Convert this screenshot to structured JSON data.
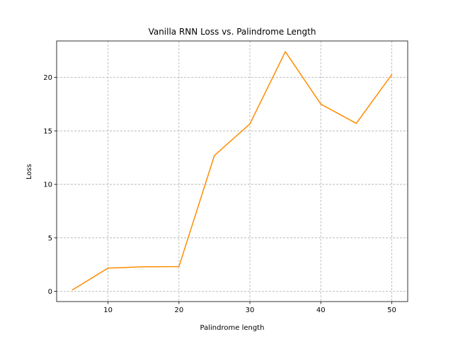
{
  "chart_data": {
    "type": "line",
    "title": "Vanilla RNN Loss vs. Palindrome Length",
    "xlabel": "Palindrome length",
    "ylabel": "Loss",
    "x": [
      5,
      10,
      15,
      20,
      25,
      30,
      35,
      40,
      45,
      50
    ],
    "series": [
      {
        "values": [
          0.15,
          2.18,
          2.3,
          2.32,
          12.7,
          15.65,
          22.4,
          17.5,
          15.7,
          20.25
        ],
        "color": "#ff8c00"
      }
    ],
    "xlim": [
      2.75,
      52.25
    ],
    "ylim": [
      -0.95,
      23.4
    ],
    "xticks": [
      10,
      20,
      30,
      40,
      50
    ],
    "yticks": [
      0,
      5,
      10,
      15,
      20
    ],
    "grid": true,
    "legend": "none"
  }
}
